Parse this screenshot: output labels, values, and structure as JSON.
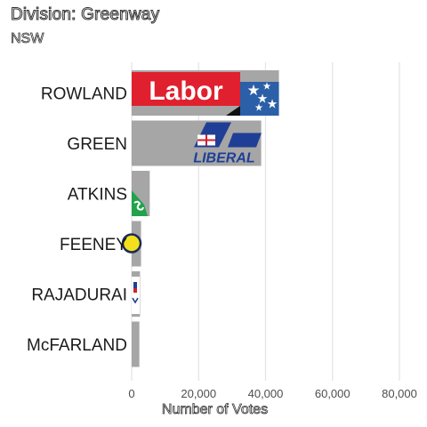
{
  "chart_data": {
    "type": "bar",
    "orientation": "horizontal",
    "title": "Division: Greenway",
    "subtitle": "NSW",
    "xlabel": "Number of Votes",
    "ylabel": "",
    "categories": [
      "ROWLAND",
      "GREEN",
      "ATKINS",
      "FEENEY",
      "RAJADURAI",
      "McFARLAND"
    ],
    "values": [
      44000,
      38700,
      5400,
      2800,
      2500,
      2300
    ],
    "xlim": [
      0,
      90000
    ],
    "xticks": [
      "0",
      "20,000",
      "40,000",
      "60,000",
      "80,000"
    ],
    "xtick_values": [
      0,
      20000,
      40000,
      60000,
      80000
    ],
    "grid": true,
    "bar_color": "#a6a6a6",
    "party_logos": [
      "labor-logo",
      "liberal-logo",
      "greens-logo",
      "yellow-party-logo",
      "blue-red-party-logo",
      "none"
    ],
    "colors": {
      "labor_red": "#e0202e",
      "labor_blue": "#2b5fa8",
      "liberal_blue": "#1e3f95",
      "greens_green": "#22a24a",
      "yellow": "#f3e01c",
      "grid": "#e3e3e3"
    }
  }
}
